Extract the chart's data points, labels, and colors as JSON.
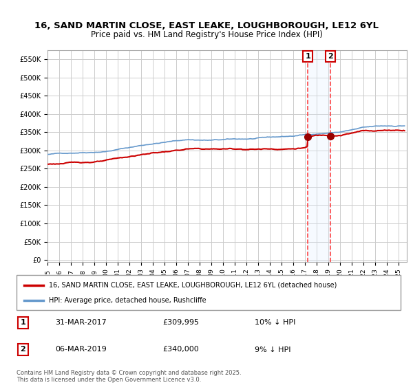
{
  "title_line1": "16, SAND MARTIN CLOSE, EAST LEAKE, LOUGHBOROUGH, LE12 6YL",
  "title_line2": "Price paid vs. HM Land Registry's House Price Index (HPI)",
  "legend_label1": "16, SAND MARTIN CLOSE, EAST LEAKE, LOUGHBOROUGH, LE12 6YL (detached house)",
  "legend_label2": "HPI: Average price, detached house, Rushcliffe",
  "annotation1_label": "1",
  "annotation1_date": "31-MAR-2017",
  "annotation1_price": "£309,995",
  "annotation1_hpi": "10% ↓ HPI",
  "annotation2_label": "2",
  "annotation2_date": "06-MAR-2019",
  "annotation2_price": "£340,000",
  "annotation2_hpi": "9% ↓ HPI",
  "sale1_date_num": 2017.24,
  "sale1_price": 309995,
  "sale2_date_num": 2019.18,
  "sale2_price": 340000,
  "color_red": "#cc0000",
  "color_blue": "#6699cc",
  "color_marker": "#990000",
  "color_vline": "#ff4444",
  "color_shade": "#ddeeff",
  "ylim_max": 575000,
  "ylim_min": -5000,
  "start_year": 1995,
  "end_year": 2025,
  "footer": "Contains HM Land Registry data © Crown copyright and database right 2025.\nThis data is licensed under the Open Government Licence v3.0.",
  "background_color": "#ffffff",
  "grid_color": "#cccccc"
}
